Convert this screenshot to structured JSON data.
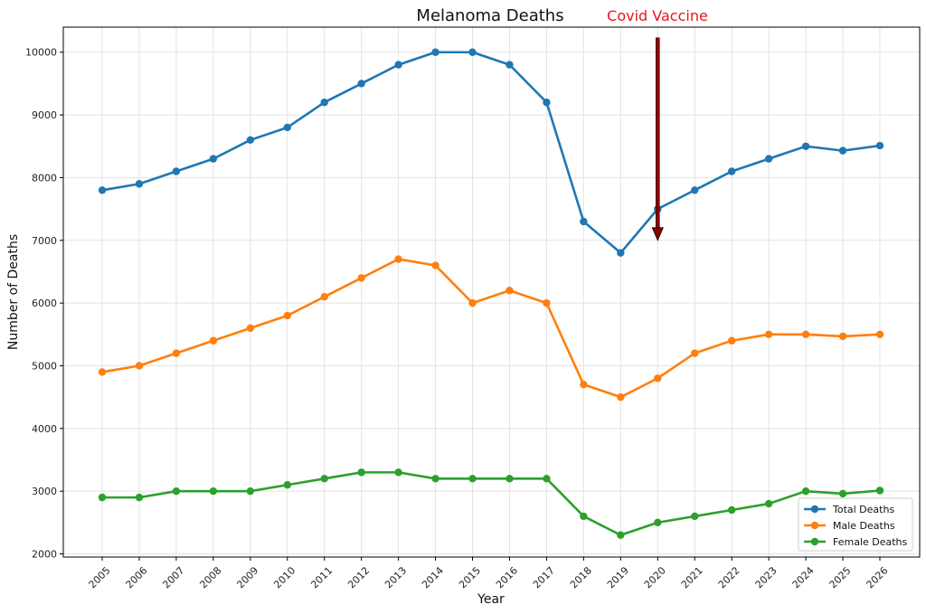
{
  "chart_data": {
    "type": "line",
    "title": "Melanoma Deaths",
    "xlabel": "Year",
    "ylabel": "Number of Deaths",
    "categories": [
      "2005",
      "2006",
      "2007",
      "2008",
      "2009",
      "2010",
      "2011",
      "2012",
      "2013",
      "2014",
      "2015",
      "2016",
      "2017",
      "2018",
      "2019",
      "2020",
      "2021",
      "2022",
      "2023",
      "2024",
      "2025",
      "2026"
    ],
    "ylim": [
      1950,
      10400
    ],
    "yticks": [
      2000,
      3000,
      4000,
      5000,
      6000,
      7000,
      8000,
      9000,
      10000
    ],
    "grid": true,
    "legend_position": "bottom-right",
    "series": [
      {
        "name": "Total Deaths",
        "color": "#1f77b4",
        "values": [
          7800,
          7900,
          8100,
          8300,
          8600,
          8800,
          9200,
          9500,
          9800,
          10000,
          10000,
          9800,
          9200,
          7300,
          6800,
          7500,
          7800,
          8100,
          8300,
          8500,
          8430,
          8510
        ]
      },
      {
        "name": "Male Deaths",
        "color": "#ff7f0e",
        "values": [
          4900,
          5000,
          5200,
          5400,
          5600,
          5800,
          6100,
          6400,
          6700,
          6600,
          6000,
          6200,
          6000,
          4700,
          4500,
          4800,
          5200,
          5400,
          5500,
          5500,
          5470,
          5500
        ]
      },
      {
        "name": "Female Deaths",
        "color": "#2ca02c",
        "values": [
          2900,
          2900,
          3000,
          3000,
          3000,
          3100,
          3200,
          3300,
          3300,
          3200,
          3200,
          3200,
          3200,
          2600,
          2300,
          2500,
          2600,
          2700,
          2800,
          3000,
          2960,
          3010
        ]
      }
    ],
    "annotation": {
      "text": "Covid Vaccine",
      "color": "#e8141c",
      "arrow_color": "#8b0000",
      "x": "2020",
      "arrow_from_y": 10230,
      "arrow_to_y": 7000
    }
  }
}
